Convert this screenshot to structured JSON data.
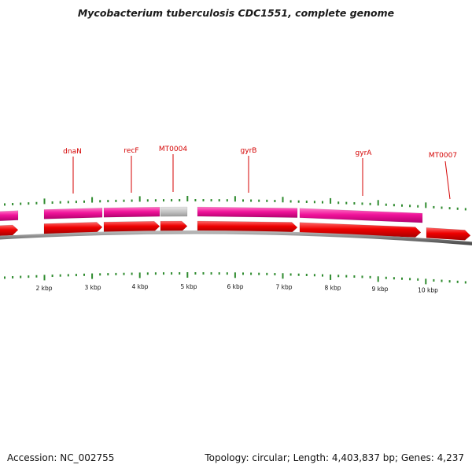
{
  "title": "Mycobacterium tuberculosis CDC1551, complete genome",
  "footer": {
    "accession_label": "Accession: NC_002755",
    "stats_label": "Topology: circular; Length: 4,403,837 bp; Genes: 4,237"
  },
  "colors": {
    "gene_label": "#d40000",
    "cds_feature": "#f0139a",
    "cds_feature_hatched": "#c0c0c0",
    "forward_arrow": "#ee0000",
    "backbone": "#808080",
    "tick": "#2e8b2e"
  },
  "gene_labels": [
    "dnaN",
    "recF",
    "MT0004",
    "gyrB",
    "gyrA",
    "MT0007"
  ],
  "scale_labels": [
    "2 kbp",
    "3 kbp",
    "4 kbp",
    "5 kbp",
    "6 kbp",
    "7 kbp",
    "8 kbp",
    "9 kbp",
    "10 kbp"
  ]
}
